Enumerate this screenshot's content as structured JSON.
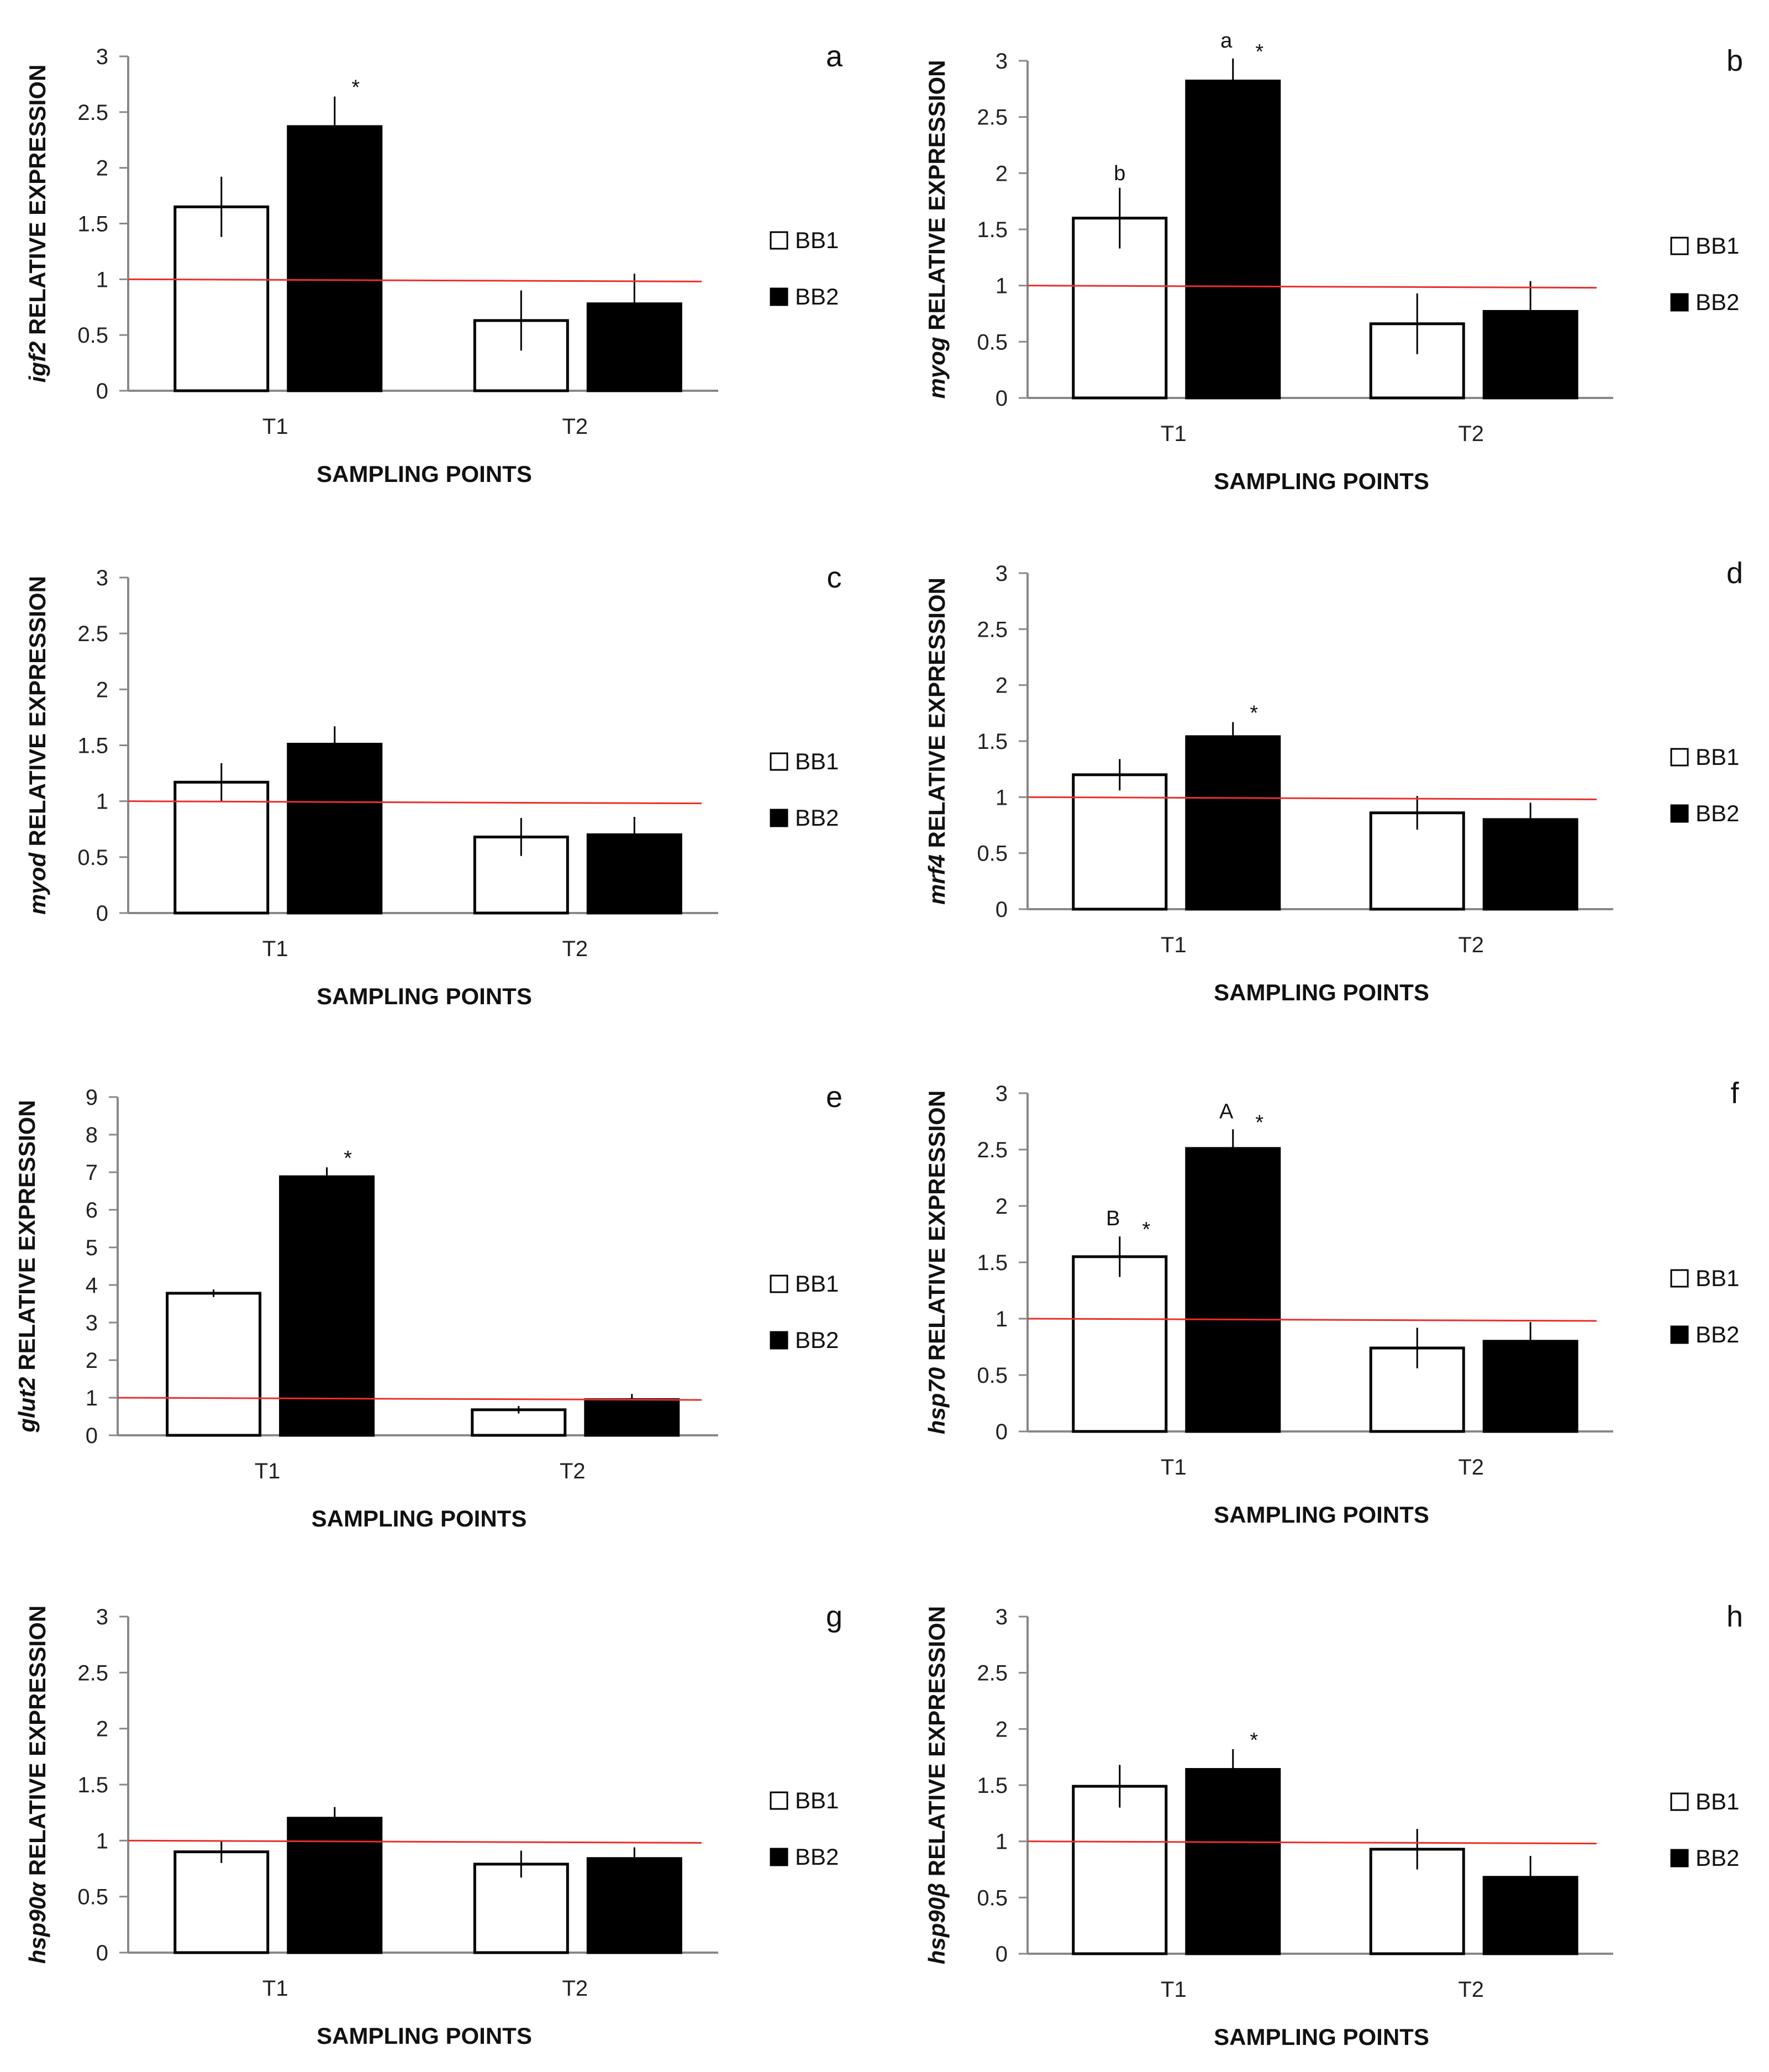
{
  "chart_data": [
    {
      "type": "bar",
      "panel_label": "a",
      "gene": "igf2",
      "ylabel_suffix": " RELATIVE EXPRESSION",
      "xlabel": "SAMPLING POINTS",
      "categories": [
        "T1",
        "T2"
      ],
      "ylim": [
        0,
        3
      ],
      "yticks": [
        0,
        0.5,
        1,
        1.5,
        2,
        2.5,
        3
      ],
      "reference_line": 1,
      "series": [
        {
          "name": "BB1",
          "values": [
            1.65,
            0.63
          ],
          "errors": [
            0.27,
            0.27
          ],
          "annotations": [
            "",
            ""
          ]
        },
        {
          "name": "BB2",
          "values": [
            2.37,
            0.78
          ],
          "errors": [
            0.27,
            0.27
          ],
          "annotations": [
            "*",
            ""
          ]
        }
      ]
    },
    {
      "type": "bar",
      "panel_label": "b",
      "gene": "myog",
      "ylabel_suffix": " RELATIVE EXPRESSION",
      "xlabel": "SAMPLING POINTS",
      "categories": [
        "T1",
        "T2"
      ],
      "ylim": [
        0,
        3
      ],
      "yticks": [
        0,
        0.5,
        1,
        1.5,
        2,
        2.5,
        3
      ],
      "reference_line": 1,
      "series": [
        {
          "name": "BB1",
          "values": [
            1.6,
            0.66
          ],
          "errors": [
            0.27,
            0.27
          ],
          "annotations": [
            "b",
            ""
          ]
        },
        {
          "name": "BB2",
          "values": [
            2.82,
            0.77
          ],
          "errors": [
            0.2,
            0.27
          ],
          "annotations": [
            "a *",
            ""
          ]
        }
      ]
    },
    {
      "type": "bar",
      "panel_label": "c",
      "gene": "myod",
      "ylabel_suffix": " RELATIVE EXPRESSION",
      "xlabel": "SAMPLING POINTS",
      "categories": [
        "T1",
        "T2"
      ],
      "ylim": [
        0,
        3
      ],
      "yticks": [
        0,
        0.5,
        1,
        1.5,
        2,
        2.5,
        3
      ],
      "reference_line": 1,
      "series": [
        {
          "name": "BB1",
          "values": [
            1.17,
            0.68
          ],
          "errors": [
            0.17,
            0.17
          ],
          "annotations": [
            "",
            ""
          ]
        },
        {
          "name": "BB2",
          "values": [
            1.51,
            0.7
          ],
          "errors": [
            0.16,
            0.16
          ],
          "annotations": [
            "",
            ""
          ]
        }
      ]
    },
    {
      "type": "bar",
      "panel_label": "d",
      "gene": "mrf4",
      "ylabel_suffix": " RELATIVE EXPRESSION",
      "xlabel": "SAMPLING POINTS",
      "categories": [
        "T1",
        "T2"
      ],
      "ylim": [
        0,
        3
      ],
      "yticks": [
        0,
        0.5,
        1,
        1.5,
        2,
        2.5,
        3
      ],
      "reference_line": 1,
      "series": [
        {
          "name": "BB1",
          "values": [
            1.2,
            0.86
          ],
          "errors": [
            0.14,
            0.15
          ],
          "annotations": [
            "",
            ""
          ]
        },
        {
          "name": "BB2",
          "values": [
            1.54,
            0.8
          ],
          "errors": [
            0.13,
            0.15
          ],
          "annotations": [
            "*",
            ""
          ]
        }
      ]
    },
    {
      "type": "bar",
      "panel_label": "e",
      "gene": "glut2",
      "ylabel_suffix": " RELATIVE EXPRESSION",
      "xlabel": "SAMPLING POINTS",
      "categories": [
        "T1",
        "T2"
      ],
      "ylim": [
        0,
        9
      ],
      "yticks": [
        0,
        1,
        2,
        3,
        4,
        5,
        6,
        7,
        8,
        9
      ],
      "reference_line": 1,
      "series": [
        {
          "name": "BB1",
          "values": [
            3.78,
            0.68
          ],
          "errors": [
            0.1,
            0.1
          ],
          "annotations": [
            "",
            ""
          ]
        },
        {
          "name": "BB2",
          "values": [
            6.88,
            0.95
          ],
          "errors": [
            0.25,
            0.15
          ],
          "annotations": [
            "*",
            ""
          ]
        }
      ]
    },
    {
      "type": "bar",
      "panel_label": "f",
      "gene": "hsp70",
      "ylabel_suffix": " RELATIVE EXPRESSION",
      "xlabel": "SAMPLING POINTS",
      "categories": [
        "T1",
        "T2"
      ],
      "ylim": [
        0,
        3
      ],
      "yticks": [
        0,
        0.5,
        1,
        1.5,
        2,
        2.5,
        3
      ],
      "reference_line": 1,
      "series": [
        {
          "name": "BB1",
          "values": [
            1.55,
            0.74
          ],
          "errors": [
            0.18,
            0.18
          ],
          "annotations": [
            "B *",
            ""
          ]
        },
        {
          "name": "BB2",
          "values": [
            2.51,
            0.8
          ],
          "errors": [
            0.17,
            0.17
          ],
          "annotations": [
            "A *",
            ""
          ]
        }
      ]
    },
    {
      "type": "bar",
      "panel_label": "g",
      "gene": "hsp90α",
      "ylabel_suffix": " RELATIVE EXPRESSION",
      "xlabel": "SAMPLING POINTS",
      "categories": [
        "T1",
        "T2"
      ],
      "ylim": [
        0,
        3
      ],
      "yticks": [
        0,
        0.5,
        1,
        1.5,
        2,
        2.5,
        3
      ],
      "reference_line": 1,
      "series": [
        {
          "name": "BB1",
          "values": [
            0.9,
            0.79
          ],
          "errors": [
            0.1,
            0.12
          ],
          "annotations": [
            "",
            ""
          ]
        },
        {
          "name": "BB2",
          "values": [
            1.2,
            0.84
          ],
          "errors": [
            0.1,
            0.1
          ],
          "annotations": [
            "",
            ""
          ]
        }
      ]
    },
    {
      "type": "bar",
      "panel_label": "h",
      "gene": "hsp90β",
      "ylabel_suffix": " RELATIVE EXPRESSION",
      "xlabel": "SAMPLING POINTS",
      "categories": [
        "T1",
        "T2"
      ],
      "ylim": [
        0,
        3
      ],
      "yticks": [
        0,
        0.5,
        1,
        1.5,
        2,
        2.5,
        3
      ],
      "reference_line": 1,
      "series": [
        {
          "name": "BB1",
          "values": [
            1.49,
            0.93
          ],
          "errors": [
            0.19,
            0.18
          ],
          "annotations": [
            "",
            ""
          ]
        },
        {
          "name": "BB2",
          "values": [
            1.64,
            0.68
          ],
          "errors": [
            0.18,
            0.19
          ],
          "annotations": [
            "*",
            ""
          ]
        }
      ]
    }
  ],
  "colors": {
    "BB1": "#ffffff",
    "BB2": "#000000",
    "reference_line": "#e8302a",
    "axis": "#888888"
  }
}
